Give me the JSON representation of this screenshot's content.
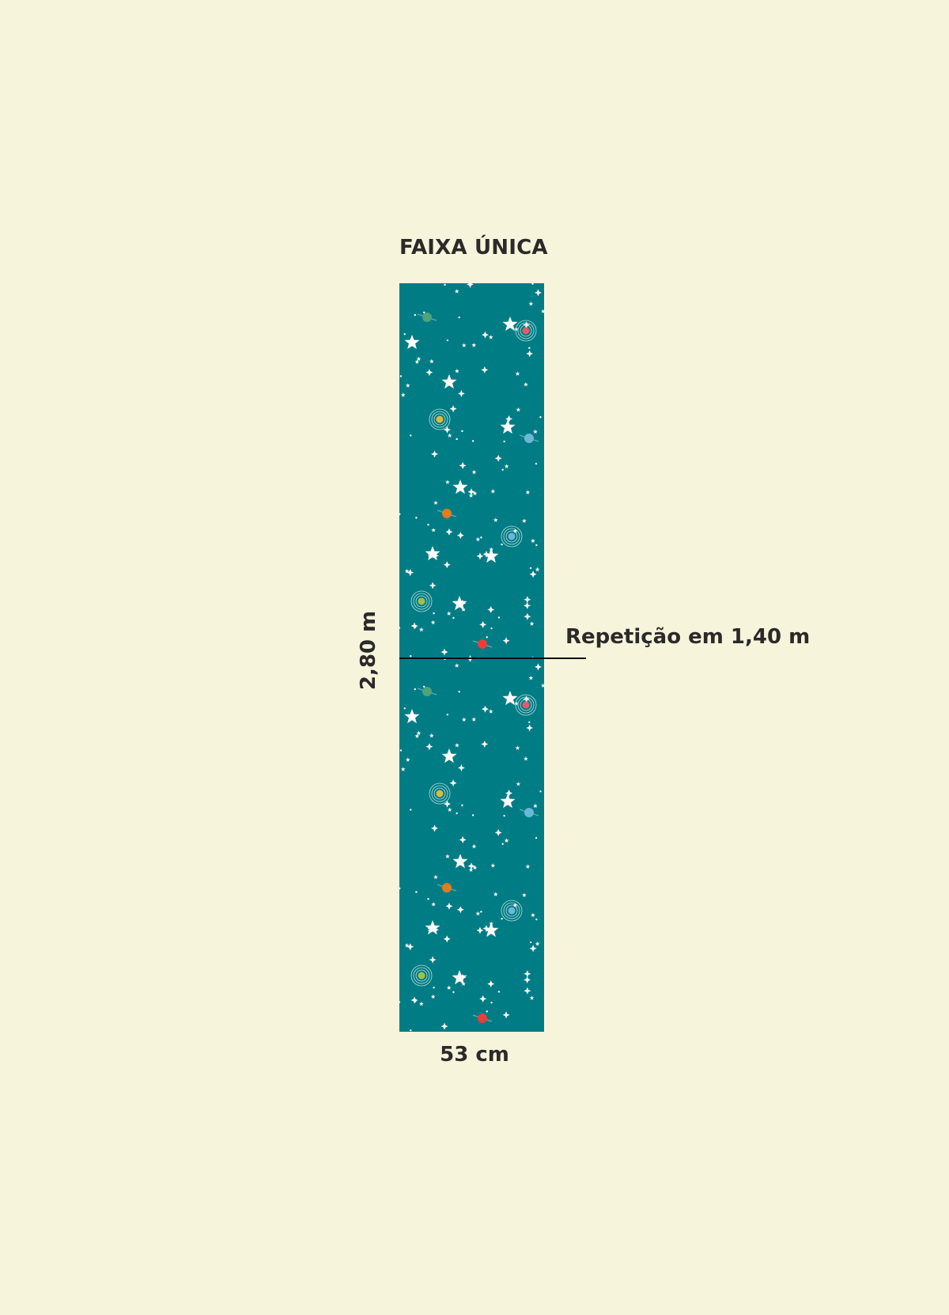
{
  "title": "FAIXA ÚNICA",
  "height_label": "2,80 m",
  "width_label": "53 cm",
  "repeat_label": "Repetição em 1,40 m",
  "colors": {
    "background": "#f7f4dc",
    "strip": "#007c85",
    "stars": "#ffffff",
    "text": "#2b2a28"
  },
  "pattern": {
    "motif": "stars and planets",
    "repeats": 2
  }
}
